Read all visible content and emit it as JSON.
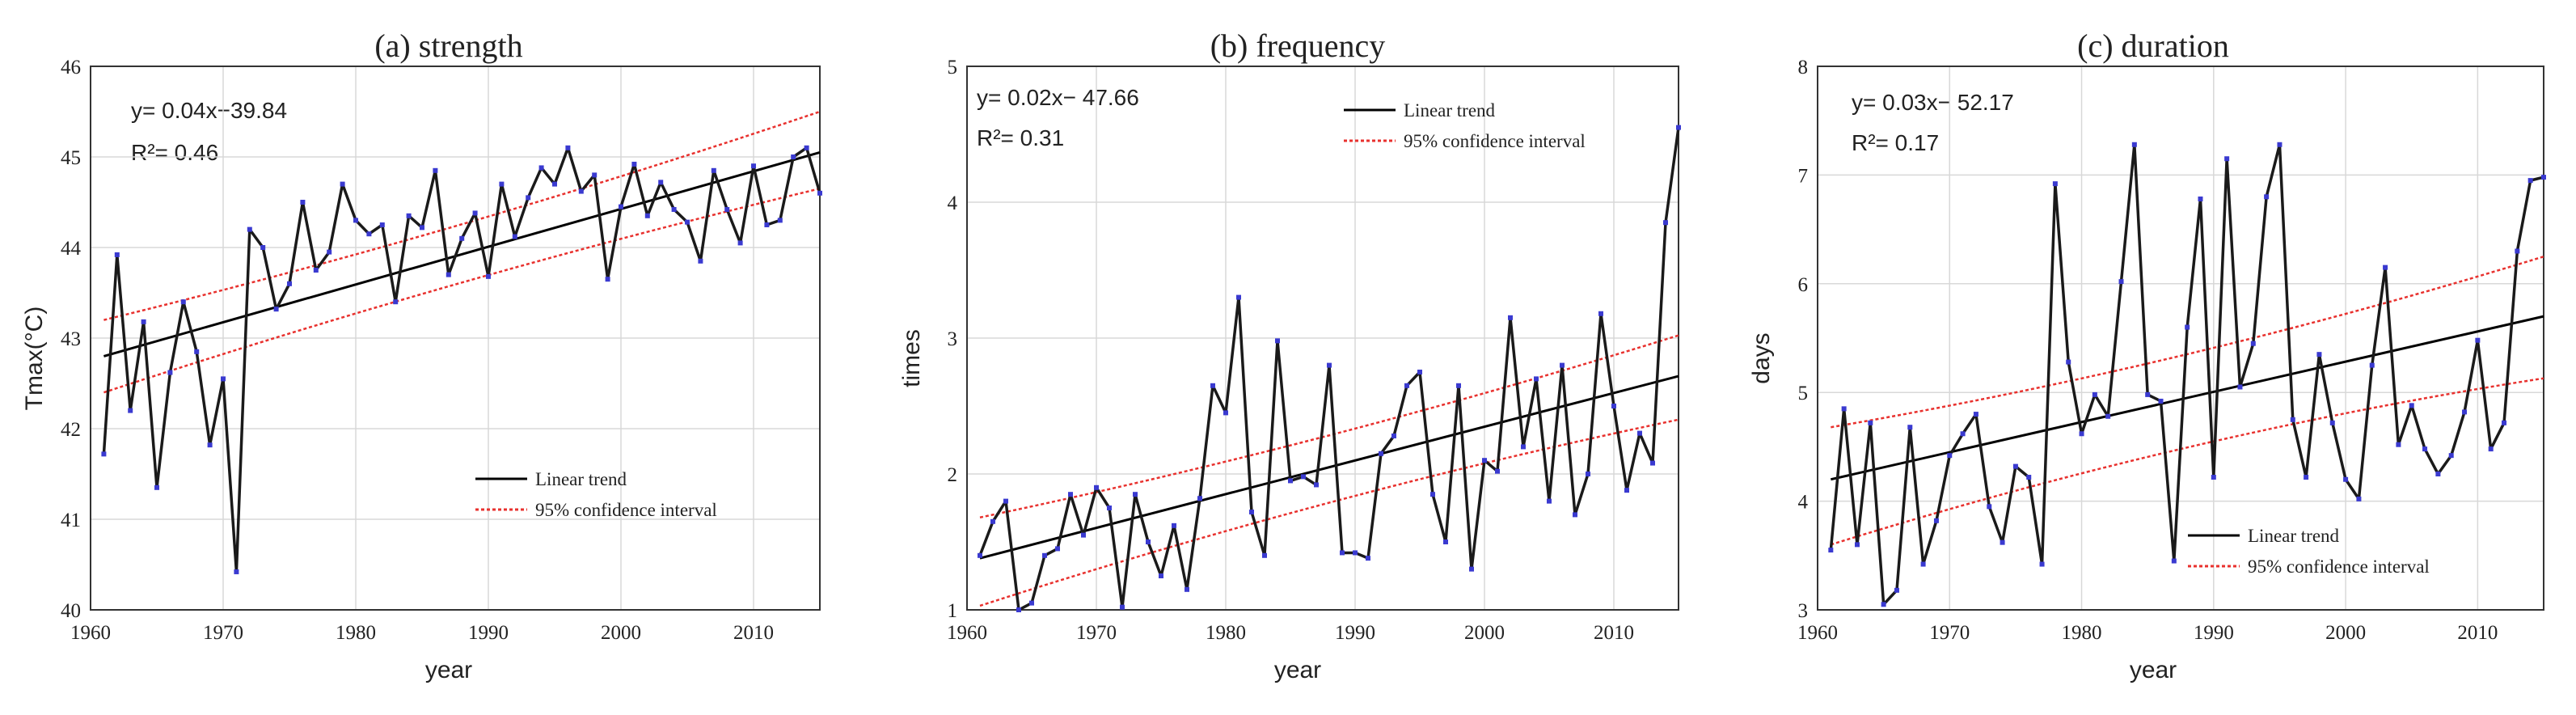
{
  "chart_data": [
    {
      "type": "line",
      "title": "(a) strength",
      "xlabel": "year",
      "ylabel": "Tmax(°C)",
      "xlim": [
        1960,
        2015
      ],
      "ylim": [
        40,
        46
      ],
      "xticks": [
        "1960",
        "1970",
        "1980",
        "1990",
        "2000",
        "2010"
      ],
      "yticks": [
        "40",
        "41",
        "42",
        "43",
        "44",
        "45",
        "46"
      ],
      "equation": "y= 0.04x−39.84",
      "r2_label": "R²= 0.46",
      "legend_position": "lower-right",
      "legend": [
        "Linear trend",
        "95% confidence interval"
      ],
      "x": [
        1961,
        1962,
        1963,
        1964,
        1965,
        1966,
        1967,
        1968,
        1969,
        1970,
        1971,
        1972,
        1973,
        1974,
        1975,
        1976,
        1977,
        1978,
        1979,
        1980,
        1981,
        1982,
        1983,
        1984,
        1985,
        1986,
        1987,
        1988,
        1989,
        1990,
        1991,
        1992,
        1993,
        1994,
        1995,
        1996,
        1997,
        1998,
        1999,
        2000,
        2001,
        2002,
        2003,
        2004,
        2005,
        2006,
        2007,
        2008,
        2009,
        2010,
        2011,
        2012,
        2013,
        2014,
        2015
      ],
      "values": [
        41.72,
        43.92,
        42.2,
        43.18,
        41.35,
        42.62,
        43.4,
        42.85,
        41.82,
        42.55,
        40.42,
        44.2,
        44.0,
        43.32,
        43.6,
        44.5,
        43.75,
        43.95,
        44.7,
        44.3,
        44.15,
        44.25,
        43.4,
        44.35,
        44.22,
        44.85,
        43.7,
        44.1,
        44.38,
        43.68,
        44.7,
        44.12,
        44.55,
        44.88,
        44.7,
        45.1,
        44.62,
        44.8,
        43.65,
        44.45,
        44.92,
        44.35,
        44.72,
        44.42,
        44.28,
        43.85,
        44.85,
        44.42,
        44.05,
        44.9,
        44.25,
        44.3,
        45.0,
        45.1,
        44.6
      ],
      "trend": [
        42.8,
        45.05
      ],
      "ci_upper": [
        43.2,
        45.5
      ],
      "ci_lower": [
        42.4,
        44.65
      ]
    },
    {
      "type": "line",
      "title": "(b) frequency",
      "xlabel": "year",
      "ylabel": "times",
      "xlim": [
        1960,
        2015
      ],
      "ylim": [
        1,
        5
      ],
      "xticks": [
        "1960",
        "1970",
        "1980",
        "1990",
        "2000",
        "2010"
      ],
      "yticks": [
        "1",
        "2",
        "3",
        "4",
        "5"
      ],
      "equation": "y= 0.02x− 47.66",
      "r2_label": "R²= 0.31",
      "legend_position": "top-right",
      "legend": [
        "Linear trend",
        "95% confidence interval"
      ],
      "x": [
        1961,
        1962,
        1963,
        1964,
        1965,
        1966,
        1967,
        1968,
        1969,
        1970,
        1971,
        1972,
        1973,
        1974,
        1975,
        1976,
        1977,
        1978,
        1979,
        1980,
        1981,
        1982,
        1983,
        1984,
        1985,
        1986,
        1987,
        1988,
        1989,
        1990,
        1991,
        1992,
        1993,
        1994,
        1995,
        1996,
        1997,
        1998,
        1999,
        2000,
        2001,
        2002,
        2003,
        2004,
        2005,
        2006,
        2007,
        2008,
        2009,
        2010,
        2011,
        2012,
        2013,
        2014,
        2015
      ],
      "values": [
        1.4,
        1.65,
        1.8,
        1.0,
        1.05,
        1.4,
        1.45,
        1.85,
        1.55,
        1.9,
        1.75,
        1.02,
        1.85,
        1.5,
        1.25,
        1.62,
        1.15,
        1.82,
        2.65,
        2.45,
        3.3,
        1.72,
        1.4,
        2.98,
        1.95,
        1.98,
        1.92,
        2.8,
        1.42,
        1.42,
        1.38,
        2.15,
        2.28,
        2.65,
        2.75,
        1.85,
        1.5,
        2.65,
        1.3,
        2.1,
        2.02,
        3.15,
        2.2,
        2.7,
        1.8,
        2.8,
        1.7,
        2.0,
        3.18,
        2.5,
        1.88,
        2.3,
        2.08,
        3.85,
        4.55
      ],
      "trend": [
        1.38,
        2.72
      ],
      "ci_upper": [
        1.68,
        3.02
      ],
      "ci_lower": [
        1.03,
        2.4
      ]
    },
    {
      "type": "line",
      "title": "(c) duration",
      "xlabel": "year",
      "ylabel": "days",
      "xlim": [
        1960,
        2015
      ],
      "ylim": [
        3,
        8
      ],
      "xticks": [
        "1960",
        "1970",
        "1980",
        "1990",
        "2000",
        "2010"
      ],
      "yticks": [
        "3",
        "4",
        "5",
        "6",
        "7",
        "8"
      ],
      "equation": "y= 0.03x− 52.17",
      "r2_label": "R²= 0.17",
      "legend_position": "lower-right",
      "legend": [
        "Linear trend",
        "95% confidence interval"
      ],
      "x": [
        1961,
        1962,
        1963,
        1964,
        1965,
        1966,
        1967,
        1968,
        1969,
        1970,
        1971,
        1972,
        1973,
        1974,
        1975,
        1976,
        1977,
        1978,
        1979,
        1980,
        1981,
        1982,
        1983,
        1984,
        1985,
        1986,
        1987,
        1988,
        1989,
        1990,
        1991,
        1992,
        1993,
        1994,
        1995,
        1996,
        1997,
        1998,
        1999,
        2000,
        2001,
        2002,
        2003,
        2004,
        2005,
        2006,
        2007,
        2008,
        2009,
        2010,
        2011,
        2012,
        2013,
        2014,
        2015
      ],
      "values": [
        3.55,
        4.85,
        3.6,
        4.72,
        3.05,
        3.18,
        4.68,
        3.42,
        3.82,
        4.42,
        4.62,
        4.8,
        3.95,
        3.62,
        4.32,
        4.22,
        3.42,
        6.92,
        5.28,
        4.62,
        4.98,
        4.78,
        6.02,
        7.28,
        4.98,
        4.92,
        3.45,
        5.6,
        6.78,
        4.22,
        7.15,
        5.05,
        5.45,
        6.8,
        7.28,
        4.75,
        4.22,
        5.35,
        4.72,
        4.2,
        4.02,
        5.25,
        6.15,
        4.52,
        4.88,
        4.48,
        4.25,
        4.42,
        4.82,
        5.48,
        4.48,
        4.72,
        6.3,
        6.95,
        6.98
      ],
      "trend": [
        4.2,
        5.7
      ],
      "ci_upper": [
        4.68,
        6.25
      ],
      "ci_lower": [
        3.6,
        5.13
      ]
    }
  ],
  "colors": {
    "line": "#1a1a1a",
    "marker": "#3a3ad0",
    "trend": "#000000",
    "ci": "#e8312e",
    "grid": "#d8d8d8",
    "axis": "#333333"
  }
}
